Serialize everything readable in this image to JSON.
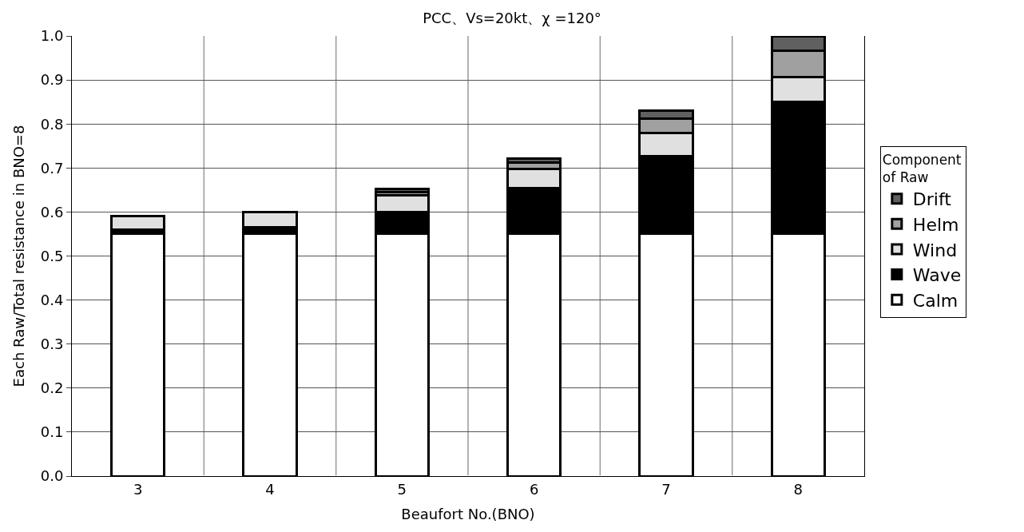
{
  "chart_data": {
    "type": "bar",
    "title": "PCC、Vs=20kt、χ =120°",
    "xlabel": "Beaufort No.(BNO)",
    "ylabel": "Each Raw/Total resistance in BNO=8",
    "legend_title": "Component of Raw",
    "categories": [
      "3",
      "4",
      "5",
      "6",
      "7",
      "8"
    ],
    "stacked": true,
    "series": [
      {
        "name": "Calm",
        "color": "#ffffff",
        "values": [
          0.55,
          0.55,
          0.55,
          0.55,
          0.55,
          0.55
        ]
      },
      {
        "name": "Wave",
        "color": "#000000",
        "values": [
          0.01,
          0.015,
          0.05,
          0.105,
          0.177,
          0.3
        ]
      },
      {
        "name": "Wind",
        "color": "#e0e0e0",
        "values": [
          0.03,
          0.035,
          0.038,
          0.042,
          0.053,
          0.057
        ]
      },
      {
        "name": "Helm",
        "color": "#a0a0a0",
        "values": [
          null,
          null,
          0.008,
          0.015,
          0.032,
          0.059
        ]
      },
      {
        "name": "Drift",
        "color": "#606060",
        "values": [
          null,
          null,
          0.007,
          0.01,
          0.019,
          0.034
        ]
      }
    ],
    "ylim": [
      0,
      1.0
    ],
    "yticks": [
      {
        "value": 0,
        "label": "0.0"
      },
      {
        "value": 0.1,
        "label": "0.1"
      },
      {
        "value": 0.2,
        "label": "0.2"
      },
      {
        "value": 0.3,
        "label": "0.3"
      },
      {
        "value": 0.4,
        "label": "0.4"
      },
      {
        "value": 0.5,
        "label": "0.5"
      },
      {
        "value": 0.6,
        "label": "0.6"
      },
      {
        "value": 0.7,
        "label": "0.7"
      },
      {
        "value": 0.8,
        "label": "0.8"
      },
      {
        "value": 0.9,
        "label": "0.9"
      },
      {
        "value": 1.0,
        "label": "1.0"
      }
    ],
    "grid": true,
    "legend": "right"
  }
}
